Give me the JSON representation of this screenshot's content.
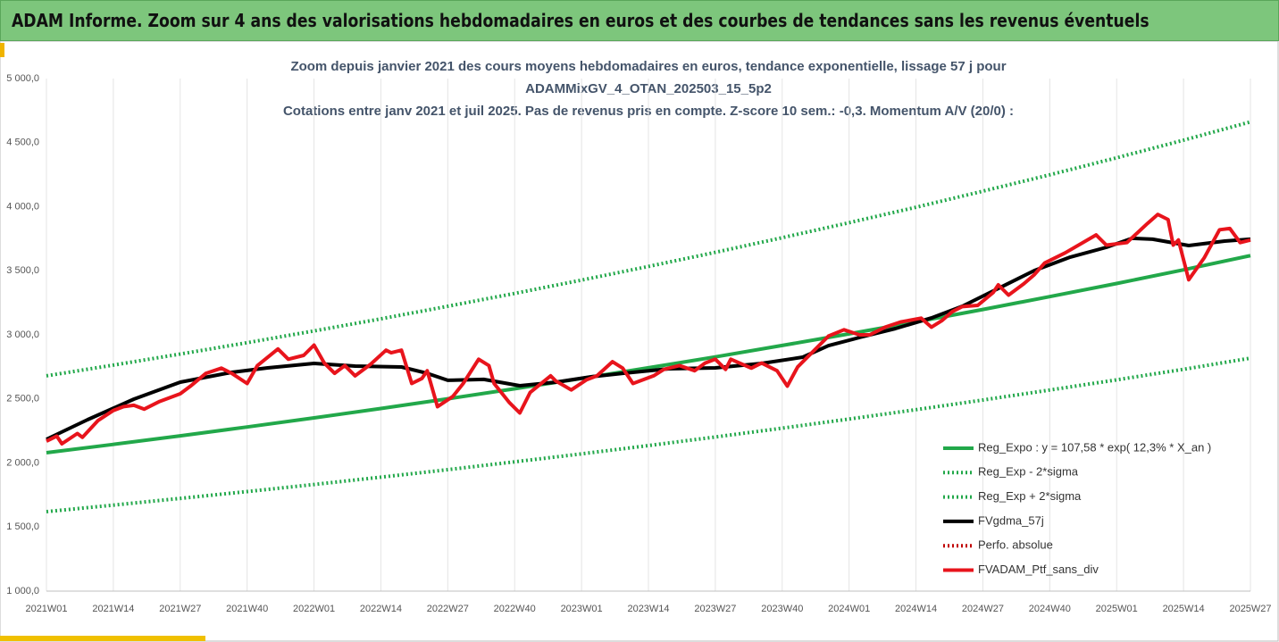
{
  "header": "ADAM Informe. Zoom sur 4 ans des valorisations hebdomadaires en euros et des courbes de tendances sans les revenus éventuels",
  "chart_data": {
    "type": "line",
    "title_lines": [
      "Zoom depuis janvier 2021 des cours moyens hebdomadaires  en euros, tendance exponentielle, lissage 57 j pour",
      "ADAMMixGV_4_OTAN_202503_15_5p2",
      "Cotations entre janv 2021 et juil 2025. Pas de revenus pris en compte. Z-score 10 sem.: -0,3. Momentum A/V (20/0) :"
    ],
    "xlim": [
      0,
      234
    ],
    "xticks": [
      {
        "value": 0,
        "label": "2021W01"
      },
      {
        "value": 13,
        "label": "2021W14"
      },
      {
        "value": 26,
        "label": "2021W27"
      },
      {
        "value": 39,
        "label": "2021W40"
      },
      {
        "value": 52,
        "label": "2022W01"
      },
      {
        "value": 65,
        "label": "2022W14"
      },
      {
        "value": 78,
        "label": "2022W27"
      },
      {
        "value": 91,
        "label": "2022W40"
      },
      {
        "value": 104,
        "label": "2023W01"
      },
      {
        "value": 117,
        "label": "2023W14"
      },
      {
        "value": 130,
        "label": "2023W27"
      },
      {
        "value": 143,
        "label": "2023W40"
      },
      {
        "value": 156,
        "label": "2024W01"
      },
      {
        "value": 169,
        "label": "2024W14"
      },
      {
        "value": 182,
        "label": "2024W27"
      },
      {
        "value": 195,
        "label": "2024W40"
      },
      {
        "value": 208,
        "label": "2025W01"
      },
      {
        "value": 221,
        "label": "2025W14"
      },
      {
        "value": 234,
        "label": "2025W27"
      }
    ],
    "ylim": [
      1000,
      5000
    ],
    "yticks": [
      {
        "value": 1000,
        "label": "1 000,0"
      },
      {
        "value": 1500,
        "label": "1 500,0"
      },
      {
        "value": 2000,
        "label": "2 000,0"
      },
      {
        "value": 2500,
        "label": "2 500,0"
      },
      {
        "value": 3000,
        "label": "3 000,0"
      },
      {
        "value": 3500,
        "label": "3 500,0"
      },
      {
        "value": 4000,
        "label": "4 000,0"
      },
      {
        "value": 4500,
        "label": "4 500,0"
      },
      {
        "value": 5000,
        "label": "5 000,0"
      }
    ],
    "grid": "x",
    "series": [
      {
        "name": "Reg_Expo : y = 107,58 * exp( 12,3% *  X_an )",
        "color": "#22a84a",
        "dash": "solid",
        "x": [
          0,
          13,
          26,
          39,
          52,
          65,
          78,
          91,
          104,
          117,
          130,
          143,
          156,
          169,
          182,
          195,
          208,
          221,
          234
        ],
        "values": [
          2080,
          2145,
          2212,
          2281,
          2352,
          2425,
          2501,
          2579,
          2660,
          2743,
          2828,
          2917,
          3008,
          3101,
          3198,
          3298,
          3401,
          3507,
          3618
        ]
      },
      {
        "name": "Reg_Exp - 2*sigma",
        "color": "#22a84a",
        "dash": "dotted",
        "x": [
          0,
          13,
          26,
          39,
          52,
          65,
          78,
          91,
          104,
          117,
          130,
          143,
          156,
          169,
          182,
          195,
          208,
          221,
          234
        ],
        "values": [
          1620,
          1671,
          1723,
          1777,
          1832,
          1889,
          1948,
          2009,
          2071,
          2136,
          2203,
          2272,
          2343,
          2416,
          2491,
          2569,
          2649,
          2731,
          2818
        ]
      },
      {
        "name": "Reg_Exp + 2*sigma",
        "color": "#22a84a",
        "dash": "dotted",
        "x": [
          0,
          13,
          26,
          39,
          52,
          65,
          78,
          91,
          104,
          117,
          130,
          143,
          156,
          169,
          182,
          195,
          208,
          221,
          234
        ],
        "values": [
          2680,
          2764,
          2850,
          2939,
          3031,
          3125,
          3223,
          3323,
          3427,
          3534,
          3644,
          3758,
          3875,
          3996,
          4121,
          4249,
          4382,
          4519,
          4662
        ]
      },
      {
        "name": "FVgdma_57j",
        "color": "#000000",
        "dash": "solid",
        "x": [
          0,
          8,
          17,
          26,
          36,
          43,
          52,
          60,
          69,
          74,
          78,
          85,
          92,
          99,
          106,
          112,
          121,
          130,
          139,
          147,
          152,
          158,
          165,
          172,
          178,
          185,
          192,
          199,
          206,
          211,
          215,
          222,
          229,
          234
        ],
        "values": [
          2185,
          2338,
          2498,
          2631,
          2707,
          2742,
          2777,
          2756,
          2749,
          2700,
          2645,
          2652,
          2603,
          2631,
          2673,
          2700,
          2735,
          2742,
          2777,
          2826,
          2916,
          2979,
          3049,
          3132,
          3223,
          3362,
          3502,
          3607,
          3683,
          3753,
          3746,
          3697,
          3732,
          3746
        ]
      },
      {
        "name": "Perfo. absolue",
        "color": "#c00000",
        "dash": "dotted",
        "x": [],
        "values": []
      },
      {
        "name": "FVADAM_Ptf_sans_div",
        "color": "#e8141c",
        "dash": "solid",
        "x": [
          0,
          2,
          3,
          6,
          7,
          10,
          13,
          15,
          17,
          19,
          22,
          26,
          28,
          31,
          34,
          36,
          39,
          41,
          45,
          47,
          50,
          52,
          54,
          56,
          58,
          60,
          63,
          66,
          67,
          69,
          71,
          73,
          74,
          76,
          79,
          81,
          84,
          86,
          87,
          90,
          92,
          94,
          98,
          99,
          102,
          105,
          107,
          110,
          112,
          114,
          118,
          120,
          123,
          126,
          128,
          130,
          132,
          133,
          137,
          139,
          142,
          144,
          146,
          149,
          152,
          155,
          158,
          160,
          163,
          166,
          170,
          172,
          174,
          176,
          178,
          181,
          184,
          185,
          187,
          190,
          192,
          194,
          198,
          204,
          206,
          210,
          214,
          216,
          218,
          219,
          220,
          222,
          225,
          228,
          230,
          232,
          234
        ],
        "values": [
          2170,
          2210,
          2150,
          2230,
          2200,
          2330,
          2410,
          2440,
          2450,
          2420,
          2480,
          2540,
          2600,
          2700,
          2740,
          2700,
          2620,
          2760,
          2890,
          2810,
          2840,
          2920,
          2780,
          2700,
          2760,
          2680,
          2770,
          2880,
          2860,
          2880,
          2620,
          2660,
          2720,
          2440,
          2520,
          2620,
          2810,
          2760,
          2620,
          2470,
          2390,
          2550,
          2680,
          2640,
          2570,
          2650,
          2680,
          2790,
          2740,
          2620,
          2680,
          2730,
          2760,
          2720,
          2780,
          2810,
          2730,
          2810,
          2740,
          2780,
          2720,
          2600,
          2750,
          2870,
          2990,
          3040,
          3000,
          3000,
          3060,
          3100,
          3130,
          3060,
          3110,
          3180,
          3220,
          3230,
          3330,
          3390,
          3310,
          3400,
          3470,
          3560,
          3640,
          3780,
          3700,
          3720,
          3870,
          3940,
          3900,
          3700,
          3740,
          3430,
          3600,
          3820,
          3830,
          3720,
          3740
        ]
      }
    ],
    "legend": "lower-right"
  }
}
